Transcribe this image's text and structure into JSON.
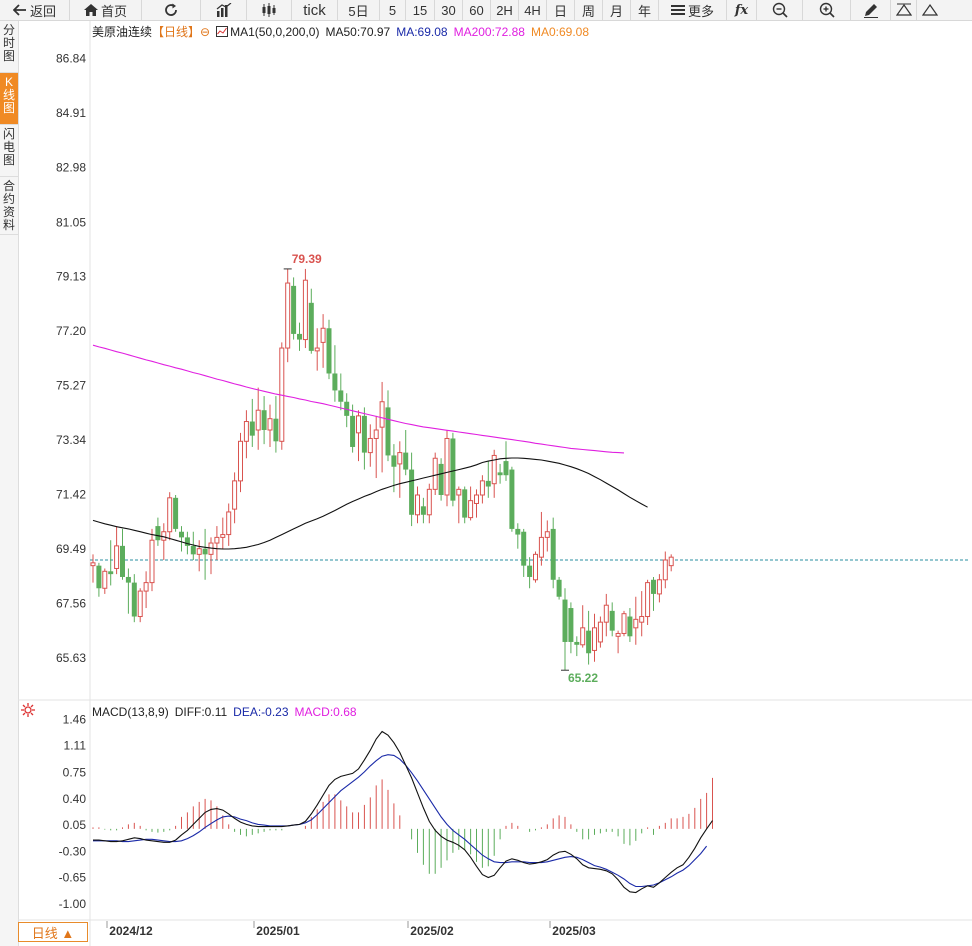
{
  "toolbar": {
    "back": "返回",
    "home": "首页",
    "refresh_icon": "refresh-icon",
    "tick": "tick",
    "p5d": "5日",
    "m5": "5",
    "m15": "15",
    "m30": "30",
    "m60": "60",
    "h2": "2H",
    "h4": "4H",
    "day": "日",
    "week": "周",
    "month": "月",
    "year": "年",
    "more": "更多",
    "fx": "fx"
  },
  "sidebar": {
    "tabs": [
      {
        "label": "分时图"
      },
      {
        "label": "K线图",
        "active": true
      },
      {
        "label": "闪电图"
      },
      {
        "label": "合约资料"
      }
    ]
  },
  "legend": {
    "name": "美原油连续",
    "period": "【日线】",
    "ma1": "MA1(50,0,200,0)",
    "ma50": "MA50:70.97",
    "ma": "MA:69.08",
    "ma200": "MA200:72.88",
    "ma0": "MA0:69.08"
  },
  "macd_legend": {
    "name": "MACD(13,8,9)",
    "diff": "DIFF:0.11",
    "dea": "DEA:-0.23",
    "macd": "MACD:0.68"
  },
  "bottom_tab": "日线 ▲",
  "colors": {
    "up": "#d9534f",
    "down": "#5cad5c",
    "ma50": "#111111",
    "ma200": "#e020e0",
    "dea": "#1a2aa8",
    "current_line": "#2a8fa0",
    "accent": "#f08a24"
  },
  "chart_data": [
    {
      "type": "candlestick",
      "ylim": [
        64.5,
        87.5
      ],
      "yticks": [
        "86.84",
        "84.91",
        "82.98",
        "81.05",
        "79.13",
        "77.20",
        "75.27",
        "73.34",
        "71.42",
        "69.49",
        "67.56",
        "65.63"
      ],
      "xticks": [
        "2024/12",
        "2025/01",
        "2025/02",
        "2025/03"
      ],
      "current_price": 69.1,
      "annotations": {
        "high": "79.39",
        "low": "65.22"
      },
      "candles": [
        [
          68.9,
          69.3,
          68.3,
          69.0
        ],
        [
          68.9,
          69.0,
          67.8,
          68.1
        ],
        [
          68.1,
          68.8,
          67.9,
          68.7
        ],
        [
          68.7,
          69.8,
          68.2,
          68.6
        ],
        [
          68.8,
          70.3,
          68.6,
          69.6
        ],
        [
          69.6,
          70.2,
          68.4,
          68.5
        ],
        [
          68.5,
          68.8,
          67.2,
          68.3
        ],
        [
          68.3,
          68.6,
          66.9,
          67.1
        ],
        [
          67.1,
          68.1,
          66.9,
          68.0
        ],
        [
          68.0,
          68.7,
          67.4,
          68.3
        ],
        [
          68.3,
          70.2,
          68.0,
          69.8
        ],
        [
          70.3,
          70.6,
          69.6,
          69.8
        ],
        [
          69.8,
          70.4,
          69.1,
          70.1
        ],
        [
          70.1,
          71.5,
          69.8,
          71.3
        ],
        [
          71.3,
          71.4,
          70.1,
          70.2
        ],
        [
          70.1,
          70.3,
          69.4,
          69.9
        ],
        [
          69.9,
          70.1,
          69.3,
          69.6
        ],
        [
          69.6,
          70.1,
          69.1,
          69.3
        ],
        [
          69.3,
          69.8,
          68.7,
          69.5
        ],
        [
          69.5,
          70.2,
          68.4,
          69.3
        ],
        [
          69.3,
          69.9,
          68.6,
          69.7
        ],
        [
          69.7,
          70.3,
          69.1,
          69.9
        ],
        [
          69.9,
          70.6,
          69.5,
          70.0
        ],
        [
          70.0,
          71.1,
          69.6,
          70.8
        ],
        [
          70.9,
          72.2,
          70.4,
          71.9
        ],
        [
          71.9,
          73.6,
          71.5,
          73.3
        ],
        [
          73.3,
          74.4,
          72.7,
          74.0
        ],
        [
          74.0,
          74.8,
          73.1,
          73.5
        ],
        [
          73.7,
          75.2,
          73.0,
          74.4
        ],
        [
          74.4,
          74.9,
          73.2,
          73.7
        ],
        [
          73.7,
          74.6,
          73.1,
          74.1
        ],
        [
          74.1,
          74.9,
          72.9,
          73.3
        ],
        [
          73.3,
          76.8,
          73.0,
          76.6
        ],
        [
          76.6,
          79.4,
          76.1,
          78.9
        ],
        [
          78.8,
          79.1,
          76.9,
          77.1
        ],
        [
          77.1,
          77.5,
          76.5,
          76.9
        ],
        [
          76.9,
          79.4,
          76.6,
          79.0
        ],
        [
          78.2,
          78.7,
          76.4,
          76.5
        ],
        [
          76.5,
          77.3,
          75.8,
          76.6
        ],
        [
          76.8,
          77.8,
          75.9,
          77.3
        ],
        [
          77.3,
          77.6,
          75.5,
          75.7
        ],
        [
          75.7,
          76.7,
          74.7,
          75.1
        ],
        [
          75.1,
          75.7,
          74.4,
          74.7
        ],
        [
          74.7,
          75.0,
          73.8,
          74.2
        ],
        [
          74.2,
          74.6,
          72.9,
          73.1
        ],
        [
          73.6,
          74.4,
          72.6,
          74.2
        ],
        [
          74.2,
          74.5,
          72.3,
          72.9
        ],
        [
          72.9,
          73.9,
          72.4,
          73.4
        ],
        [
          73.4,
          74.2,
          72.0,
          73.7
        ],
        [
          73.8,
          75.4,
          72.2,
          74.7
        ],
        [
          74.5,
          75.1,
          72.6,
          72.8
        ],
        [
          72.8,
          73.2,
          71.5,
          72.4
        ],
        [
          72.5,
          73.3,
          71.3,
          72.9
        ],
        [
          72.9,
          73.7,
          72.1,
          72.3
        ],
        [
          72.3,
          72.9,
          70.3,
          70.7
        ],
        [
          70.7,
          71.7,
          70.4,
          71.4
        ],
        [
          71.0,
          71.3,
          70.4,
          70.7
        ],
        [
          70.7,
          71.8,
          70.4,
          71.6
        ],
        [
          71.6,
          72.9,
          71.4,
          72.7
        ],
        [
          72.5,
          72.7,
          71.2,
          71.4
        ],
        [
          71.4,
          73.7,
          71.0,
          73.4
        ],
        [
          73.4,
          73.6,
          71.0,
          71.2
        ],
        [
          71.4,
          71.7,
          70.4,
          71.6
        ],
        [
          71.6,
          71.7,
          70.4,
          70.6
        ],
        [
          70.6,
          71.7,
          70.5,
          71.2
        ],
        [
          71.1,
          71.6,
          70.6,
          71.4
        ],
        [
          71.4,
          72.1,
          71.1,
          71.9
        ],
        [
          71.9,
          72.6,
          71.3,
          71.7
        ],
        [
          71.8,
          73.0,
          71.3,
          72.8
        ],
        [
          72.2,
          72.5,
          71.8,
          72.1
        ],
        [
          72.6,
          73.3,
          71.9,
          72.1
        ],
        [
          72.3,
          72.4,
          70.1,
          70.2
        ],
        [
          70.2,
          70.4,
          69.5,
          70.0
        ],
        [
          70.1,
          70.2,
          68.5,
          68.9
        ],
        [
          68.9,
          69.2,
          68.1,
          68.5
        ],
        [
          68.4,
          69.4,
          68.3,
          69.3
        ],
        [
          69.2,
          70.8,
          68.9,
          69.9
        ],
        [
          69.9,
          70.5,
          69.4,
          70.1
        ],
        [
          70.2,
          70.6,
          68.1,
          68.4
        ],
        [
          68.4,
          68.5,
          67.7,
          67.8
        ],
        [
          67.7,
          68.1,
          65.2,
          66.2
        ],
        [
          67.4,
          67.6,
          65.8,
          66.2
        ],
        [
          66.2,
          66.4,
          65.7,
          66.1
        ],
        [
          66.1,
          67.5,
          66.0,
          66.7
        ],
        [
          66.6,
          67.3,
          65.4,
          65.8
        ],
        [
          65.9,
          67.2,
          65.5,
          66.7
        ],
        [
          66.2,
          67.1,
          66.0,
          66.9
        ],
        [
          66.9,
          67.9,
          66.4,
          67.5
        ],
        [
          67.3,
          67.6,
          66.4,
          66.6
        ],
        [
          66.4,
          66.6,
          65.8,
          66.5
        ],
        [
          66.5,
          67.3,
          66.4,
          67.2
        ],
        [
          67.1,
          67.4,
          66.2,
          66.4
        ],
        [
          66.7,
          67.8,
          66.1,
          67.0
        ],
        [
          66.9,
          68.0,
          66.4,
          67.1
        ],
        [
          67.1,
          68.4,
          66.8,
          68.3
        ],
        [
          68.4,
          68.5,
          67.3,
          67.9
        ],
        [
          67.9,
          68.6,
          67.6,
          68.4
        ],
        [
          68.4,
          69.4,
          68.1,
          69.1
        ],
        [
          68.9,
          69.3,
          68.7,
          69.2
        ]
      ],
      "ma50": [
        70.5,
        70.44,
        70.38,
        70.33,
        70.28,
        70.24,
        70.2,
        70.15,
        70.1,
        70.05,
        70.0,
        69.96,
        69.92,
        69.86,
        69.8,
        69.74,
        69.68,
        69.63,
        69.58,
        69.55,
        69.52,
        69.5,
        69.49,
        69.49,
        69.5,
        69.52,
        69.55,
        69.6,
        69.65,
        69.72,
        69.8,
        69.9,
        70.0,
        70.1,
        70.2,
        70.3,
        70.4,
        70.48,
        70.56,
        70.65,
        70.75,
        70.85,
        70.96,
        71.07,
        71.17,
        71.26,
        71.35,
        71.43,
        71.52,
        71.6,
        71.67,
        71.74,
        71.8,
        71.85,
        71.9,
        71.95,
        72.0,
        72.05,
        72.1,
        72.15,
        72.2,
        72.25,
        72.3,
        72.35,
        72.4,
        72.47,
        72.55,
        72.6,
        72.64,
        72.68,
        72.7,
        72.71,
        72.71,
        72.7,
        72.68,
        72.66,
        72.64,
        72.6,
        72.56,
        72.52,
        72.46,
        72.4,
        72.33,
        72.25,
        72.16,
        72.05,
        71.94,
        71.82,
        71.7,
        71.58,
        71.45,
        71.32,
        71.2,
        71.08,
        70.97
      ],
      "ma200": [
        76.7,
        76.64,
        76.59,
        76.53,
        76.47,
        76.42,
        76.36,
        76.3,
        76.24,
        76.18,
        76.13,
        76.07,
        76.01,
        75.96,
        75.9,
        75.85,
        75.79,
        75.73,
        75.68,
        75.62,
        75.56,
        75.5,
        75.45,
        75.39,
        75.33,
        75.28,
        75.22,
        75.17,
        75.12,
        75.07,
        75.02,
        74.97,
        74.93,
        74.89,
        74.85,
        74.8,
        74.76,
        74.71,
        74.67,
        74.63,
        74.58,
        74.53,
        74.48,
        74.43,
        74.38,
        74.33,
        74.28,
        74.23,
        74.18,
        74.13,
        74.08,
        74.03,
        73.98,
        73.93,
        73.89,
        73.85,
        73.81,
        73.78,
        73.75,
        73.72,
        73.69,
        73.66,
        73.63,
        73.6,
        73.57,
        73.54,
        73.51,
        73.48,
        73.45,
        73.42,
        73.39,
        73.36,
        73.33,
        73.3,
        73.27,
        73.23,
        73.2,
        73.17,
        73.14,
        73.11,
        73.08,
        73.05,
        73.03,
        73.01,
        72.99,
        72.97,
        72.95,
        72.93,
        72.91,
        72.9,
        72.89
      ]
    },
    {
      "type": "macd",
      "ylim": [
        -1.15,
        1.52
      ],
      "yticks": [
        "1.46",
        "1.11",
        "0.75",
        "0.40",
        "0.05",
        "-0.30",
        "-0.65",
        "-1.00"
      ],
      "diff": [
        -0.15,
        -0.15,
        -0.16,
        -0.17,
        -0.17,
        -0.16,
        -0.14,
        -0.12,
        -0.13,
        -0.15,
        -0.16,
        -0.17,
        -0.18,
        -0.18,
        -0.15,
        -0.08,
        -0.02,
        0.06,
        0.14,
        0.22,
        0.26,
        0.27,
        0.25,
        0.2,
        0.14,
        0.09,
        0.06,
        0.04,
        0.03,
        0.03,
        0.03,
        0.03,
        0.03,
        0.04,
        0.05,
        0.06,
        0.1,
        0.2,
        0.32,
        0.45,
        0.58,
        0.66,
        0.7,
        0.72,
        0.74,
        0.8,
        0.92,
        1.05,
        1.2,
        1.3,
        1.25,
        1.15,
        1.02,
        0.85,
        0.68,
        0.48,
        0.28,
        0.1,
        -0.02,
        -0.1,
        -0.15,
        -0.18,
        -0.22,
        -0.28,
        -0.38,
        -0.5,
        -0.61,
        -0.65,
        -0.62,
        -0.52,
        -0.43,
        -0.4,
        -0.42,
        -0.45,
        -0.47,
        -0.46,
        -0.44,
        -0.41,
        -0.35,
        -0.31,
        -0.3,
        -0.34,
        -0.4,
        -0.48,
        -0.52,
        -0.53,
        -0.54,
        -0.56,
        -0.6,
        -0.68,
        -0.78,
        -0.84,
        -0.85,
        -0.8,
        -0.76,
        -0.78,
        -0.72,
        -0.65,
        -0.58,
        -0.52,
        -0.48,
        -0.38,
        -0.26,
        -0.12,
        0.0,
        0.11
      ],
      "dea": [
        -0.16,
        -0.16,
        -0.16,
        -0.16,
        -0.16,
        -0.17,
        -0.17,
        -0.16,
        -0.15,
        -0.14,
        -0.14,
        -0.15,
        -0.16,
        -0.17,
        -0.17,
        -0.16,
        -0.13,
        -0.09,
        -0.04,
        0.02,
        0.07,
        0.12,
        0.16,
        0.17,
        0.16,
        0.13,
        0.11,
        0.08,
        0.06,
        0.05,
        0.04,
        0.04,
        0.04,
        0.04,
        0.05,
        0.06,
        0.08,
        0.12,
        0.19,
        0.27,
        0.35,
        0.43,
        0.51,
        0.57,
        0.63,
        0.69,
        0.76,
        0.84,
        0.91,
        0.97,
        0.99,
        0.98,
        0.93,
        0.85,
        0.75,
        0.64,
        0.52,
        0.4,
        0.28,
        0.16,
        0.06,
        -0.02,
        -0.08,
        -0.14,
        -0.21,
        -0.28,
        -0.35,
        -0.4,
        -0.44,
        -0.45,
        -0.45,
        -0.44,
        -0.44,
        -0.44,
        -0.45,
        -0.45,
        -0.45,
        -0.44,
        -0.42,
        -0.4,
        -0.38,
        -0.37,
        -0.38,
        -0.41,
        -0.45,
        -0.49,
        -0.51,
        -0.54,
        -0.58,
        -0.62,
        -0.67,
        -0.73,
        -0.77,
        -0.77,
        -0.76,
        -0.75,
        -0.72,
        -0.68,
        -0.64,
        -0.59,
        -0.55,
        -0.49,
        -0.41,
        -0.33,
        -0.23
      ],
      "macd": [
        0.02,
        0.02,
        -0.01,
        -0.02,
        -0.02,
        0.02,
        0.06,
        0.08,
        0.04,
        -0.02,
        -0.04,
        -0.05,
        -0.04,
        -0.02,
        0.04,
        0.16,
        0.22,
        0.3,
        0.36,
        0.4,
        0.38,
        0.3,
        0.18,
        0.06,
        -0.04,
        -0.08,
        -0.1,
        -0.08,
        -0.06,
        -0.04,
        -0.02,
        -0.02,
        -0.02,
        0.0,
        0.0,
        0.0,
        0.04,
        0.16,
        0.26,
        0.36,
        0.46,
        0.46,
        0.38,
        0.3,
        0.22,
        0.22,
        0.32,
        0.42,
        0.58,
        0.66,
        0.52,
        0.34,
        0.18,
        0.0,
        -0.14,
        -0.32,
        -0.48,
        -0.6,
        -0.6,
        -0.52,
        -0.42,
        -0.32,
        -0.28,
        -0.28,
        -0.34,
        -0.44,
        -0.52,
        -0.5,
        -0.36,
        -0.14,
        0.04,
        0.08,
        0.04,
        0.0,
        -0.04,
        -0.02,
        0.02,
        0.06,
        0.14,
        0.18,
        0.16,
        0.06,
        -0.04,
        -0.14,
        -0.14,
        -0.08,
        -0.06,
        -0.04,
        -0.04,
        -0.1,
        -0.2,
        -0.22,
        -0.16,
        -0.06,
        0.02,
        -0.08,
        0.04,
        0.08,
        0.14,
        0.14,
        0.16,
        0.2,
        0.28,
        0.4,
        0.48,
        0.68
      ]
    }
  ]
}
